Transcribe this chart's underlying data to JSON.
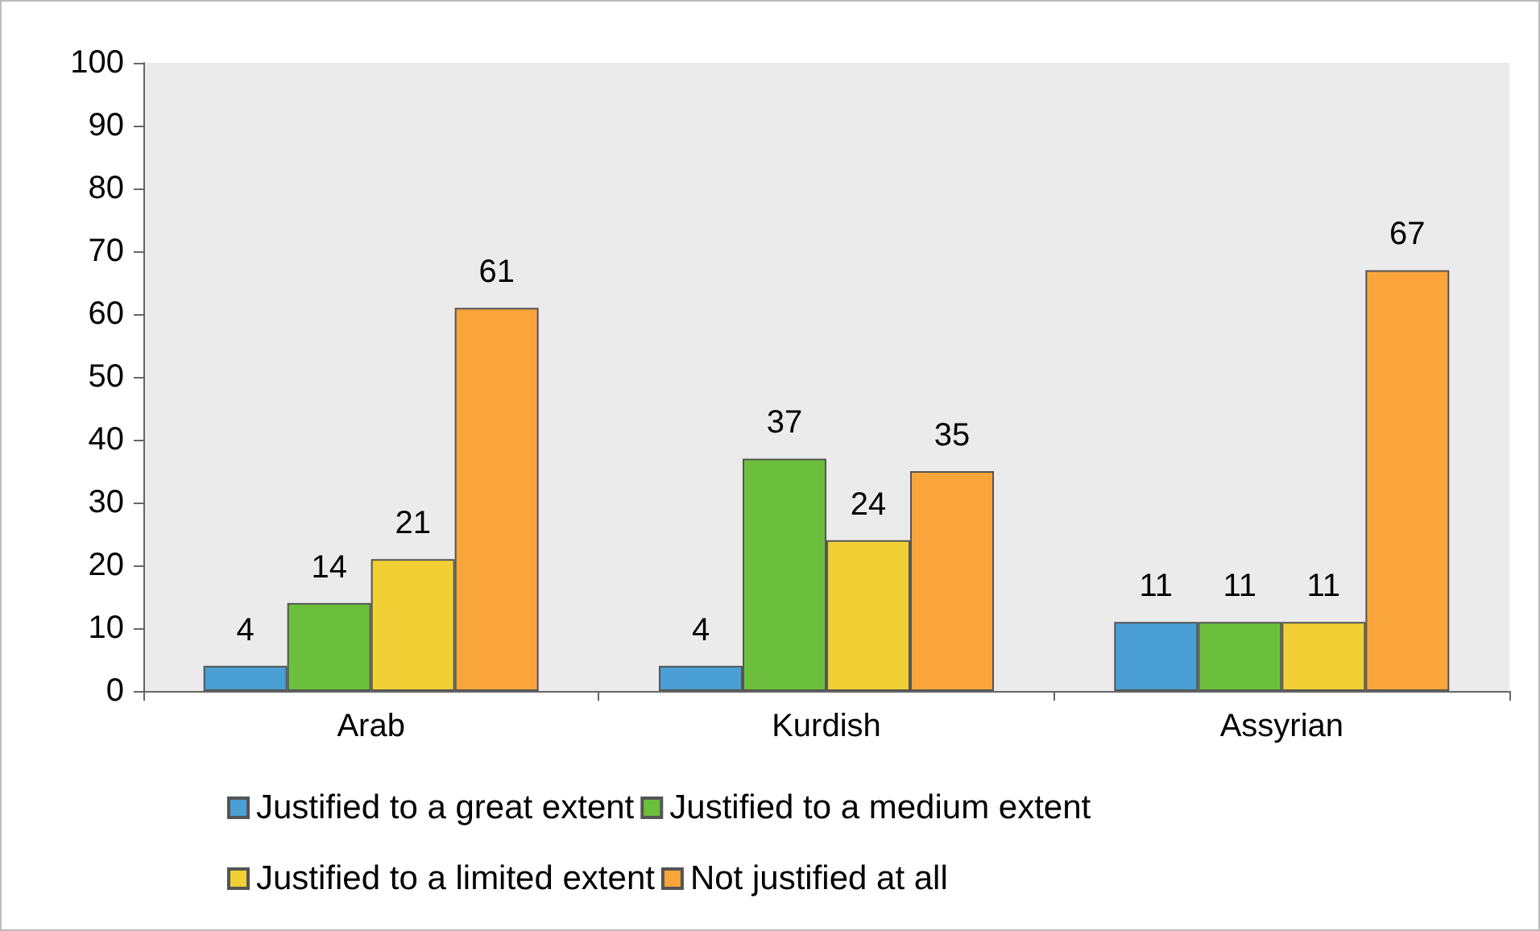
{
  "chart_data": {
    "type": "bar",
    "categories": [
      "Arab",
      "Kurdish",
      "Assyrian"
    ],
    "series": [
      {
        "name": "Justified to a great extent",
        "color": "#4a9fd4",
        "values": [
          4,
          4,
          11
        ]
      },
      {
        "name": "Justified to a medium extent",
        "color": "#6cbf3c",
        "values": [
          14,
          37,
          11
        ]
      },
      {
        "name": "Justified to a limited extent",
        "color": "#f0d034",
        "values": [
          21,
          24,
          11
        ]
      },
      {
        "name": "Not justified at all",
        "color": "#f9a53c",
        "values": [
          61,
          35,
          67
        ]
      }
    ],
    "ylim": [
      0,
      100
    ],
    "yticks": [
      0,
      10,
      20,
      30,
      40,
      50,
      60,
      70,
      80,
      90,
      100
    ],
    "grid": false,
    "legend": "bottom",
    "data_labels": true
  }
}
